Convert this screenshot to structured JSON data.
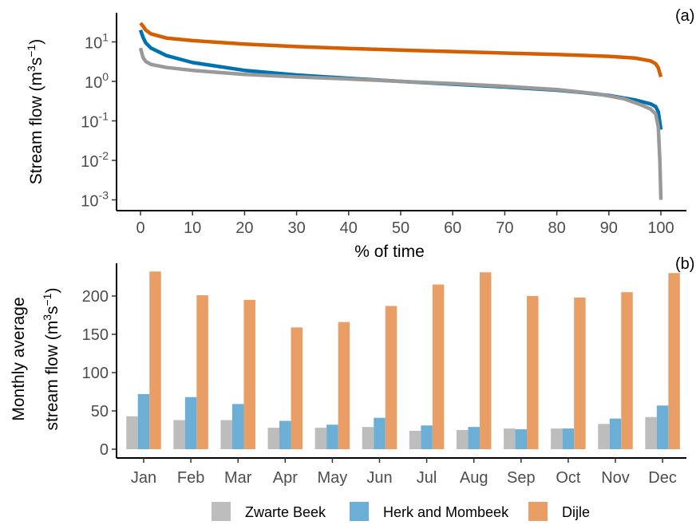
{
  "chart_data": [
    {
      "type": "line",
      "panel_tag": "(a)",
      "xlabel": "% of time",
      "ylabel": "Stream flow (m³s⁻¹)",
      "ylabel_parts": {
        "main": "Stream flow (m",
        "sup1": "3",
        "mid": "s",
        "sup2": "−1",
        "end": ")"
      },
      "xlim": [
        0,
        100
      ],
      "x_ticks": [
        "0",
        "10",
        "20",
        "30",
        "40",
        "50",
        "60",
        "70",
        "80",
        "90",
        "100"
      ],
      "y_scale": "log",
      "ylim": [
        0.001,
        50
      ],
      "y_ticks": [
        {
          "value": 10,
          "base": "10",
          "exp": "1"
        },
        {
          "value": 1,
          "base": "10",
          "exp": "0"
        },
        {
          "value": 0.1,
          "base": "10",
          "exp": "-1"
        },
        {
          "value": 0.01,
          "base": "10",
          "exp": "-2"
        },
        {
          "value": 0.001,
          "base": "10",
          "exp": "-3"
        }
      ],
      "grid": false,
      "series": [
        {
          "name": "Dijle",
          "color": "#d55e00",
          "x": [
            0,
            0.5,
            1,
            2,
            5,
            10,
            20,
            30,
            40,
            50,
            60,
            70,
            80,
            90,
            95,
            98,
            99,
            99.5,
            100
          ],
          "y": [
            30,
            25,
            20,
            16,
            12.5,
            10.8,
            8.8,
            7.6,
            6.8,
            6.2,
            5.7,
            5.2,
            4.8,
            4.3,
            3.9,
            3.3,
            2.8,
            2.2,
            1.3
          ]
        },
        {
          "name": "Herk and Mombeek",
          "color": "#0072b2",
          "x": [
            0,
            0.5,
            1,
            2,
            5,
            10,
            20,
            30,
            40,
            50,
            60,
            70,
            80,
            85,
            90,
            95,
            98,
            99,
            99.5,
            100
          ],
          "y": [
            20,
            13,
            9.5,
            7.0,
            4.5,
            3.0,
            1.9,
            1.45,
            1.2,
            1.0,
            0.85,
            0.72,
            0.6,
            0.52,
            0.44,
            0.34,
            0.27,
            0.23,
            0.17,
            0.06
          ]
        },
        {
          "name": "Zwarte Beek",
          "color": "#999999",
          "x": [
            0,
            0.5,
            1,
            2,
            5,
            10,
            20,
            30,
            40,
            50,
            60,
            70,
            80,
            88,
            93,
            96,
            98,
            99,
            99.5,
            99.8,
            100
          ],
          "y": [
            7,
            4.0,
            3.2,
            2.7,
            2.25,
            1.9,
            1.5,
            1.3,
            1.15,
            1.0,
            0.88,
            0.75,
            0.62,
            0.48,
            0.36,
            0.26,
            0.2,
            0.15,
            0.07,
            0.01,
            0.001
          ]
        }
      ]
    },
    {
      "type": "bar",
      "panel_tag": "(b)",
      "ylabel_line1": "Monthly average",
      "ylabel_line2_parts": {
        "main": "stream flow (m",
        "sup1": "3",
        "mid": "s",
        "sup2": "−1",
        "end": ")"
      },
      "categories": [
        "Jan",
        "Feb",
        "Mar",
        "Apr",
        "May",
        "Jun",
        "Jul",
        "Aug",
        "Sep",
        "Oct",
        "Nov",
        "Dec"
      ],
      "ylim": [
        0,
        240
      ],
      "y_ticks": [
        "0",
        "50",
        "100",
        "150",
        "200"
      ],
      "legend_position": "bottom",
      "series": [
        {
          "name": "Zwarte Beek",
          "color": "#bdbdbd",
          "values": [
            43,
            38,
            38,
            28,
            28,
            29,
            24,
            25,
            27,
            27,
            33,
            42
          ]
        },
        {
          "name": "Herk and Mombeek",
          "color": "#6baed6",
          "values": [
            72,
            68,
            59,
            37,
            32,
            41,
            31,
            29,
            26,
            27,
            40,
            57
          ]
        },
        {
          "name": "Dijle",
          "color": "#e99e65",
          "values": [
            232,
            201,
            195,
            159,
            166,
            187,
            215,
            231,
            200,
            198,
            205,
            230
          ]
        }
      ]
    }
  ]
}
